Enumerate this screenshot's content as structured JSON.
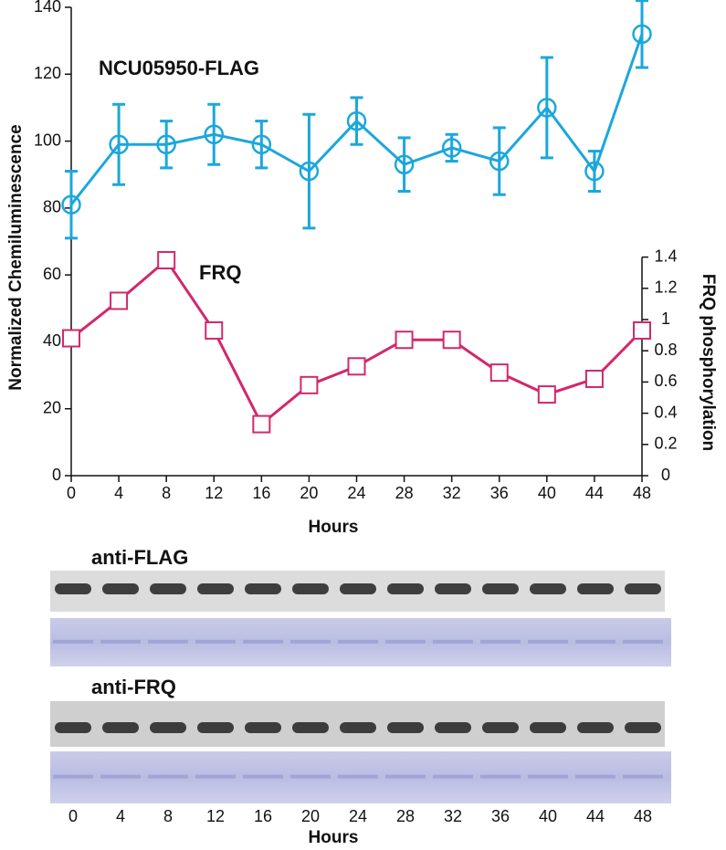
{
  "chart_data": {
    "type": "line",
    "x": [
      0,
      4,
      8,
      12,
      16,
      20,
      24,
      28,
      32,
      36,
      40,
      44,
      48
    ],
    "xlabel": "Hours",
    "ylabel": "Normalized Chemiluminescence",
    "y2label": "FRQ phosphorylation",
    "xlim": [
      0,
      48
    ],
    "xticks": [
      0,
      4,
      8,
      12,
      16,
      20,
      24,
      28,
      32,
      36,
      40,
      44,
      48
    ],
    "ylim": [
      0,
      140
    ],
    "yticks": [
      0,
      20,
      40,
      60,
      80,
      100,
      120,
      140
    ],
    "y2lim": [
      0,
      3
    ],
    "y2ticks": [
      0,
      0.2,
      0.4,
      0.6,
      0.8,
      1,
      1.2,
      1.4
    ],
    "series": [
      {
        "name": "NCU05950-FLAG",
        "color": "#1ba7dc",
        "marker": "circle",
        "values": [
          81,
          99,
          99,
          102,
          99,
          91,
          106,
          93,
          98,
          94,
          110,
          91,
          132
        ],
        "errors": [
          10,
          12,
          7,
          9,
          7,
          17,
          7,
          8,
          4,
          10,
          15,
          6,
          10
        ]
      },
      {
        "name": "FRQ",
        "color": "#d2286c",
        "marker": "square",
        "axis": "y2",
        "values": [
          0.88,
          1.12,
          1.38,
          0.93,
          0.33,
          0.58,
          0.7,
          0.87,
          0.87,
          0.66,
          0.52,
          0.62,
          0.93
        ]
      }
    ]
  },
  "blots": {
    "panels": [
      {
        "label": "anti-FLAG"
      },
      {
        "label": "anti-FRQ"
      }
    ],
    "lanes": [
      0,
      4,
      8,
      12,
      16,
      20,
      24,
      28,
      32,
      36,
      40,
      44,
      48
    ],
    "xlabel": "Hours"
  }
}
